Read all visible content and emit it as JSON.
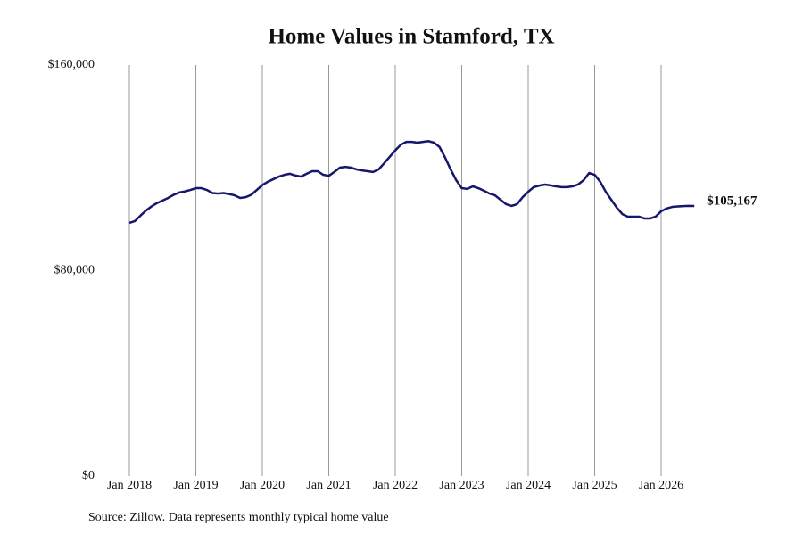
{
  "chart_data": {
    "type": "line",
    "title": "Home Values in Stamford, TX",
    "source": "Source: Zillow. Data represents monthly typical home value",
    "x": [
      "2018-01",
      "2018-02",
      "2018-03",
      "2018-04",
      "2018-05",
      "2018-06",
      "2018-07",
      "2018-08",
      "2018-09",
      "2018-10",
      "2018-11",
      "2018-12",
      "2019-01",
      "2019-02",
      "2019-03",
      "2019-04",
      "2019-05",
      "2019-06",
      "2019-07",
      "2019-08",
      "2019-09",
      "2019-10",
      "2019-11",
      "2019-12",
      "2020-01",
      "2020-02",
      "2020-03",
      "2020-04",
      "2020-05",
      "2020-06",
      "2020-07",
      "2020-08",
      "2020-09",
      "2020-10",
      "2020-11",
      "2020-12",
      "2021-01",
      "2021-02",
      "2021-03",
      "2021-04",
      "2021-05",
      "2021-06",
      "2021-07",
      "2021-08",
      "2021-09",
      "2021-10",
      "2021-11",
      "2021-12",
      "2022-01",
      "2022-02",
      "2022-03",
      "2022-04",
      "2022-05",
      "2022-06",
      "2022-07",
      "2022-08",
      "2022-09",
      "2022-10",
      "2022-11",
      "2022-12",
      "2023-01",
      "2023-02",
      "2023-03",
      "2023-04",
      "2023-05",
      "2023-06",
      "2023-07",
      "2023-08",
      "2023-09",
      "2023-10",
      "2023-11",
      "2023-12",
      "2024-01",
      "2024-02",
      "2024-03",
      "2024-04",
      "2024-05",
      "2024-06",
      "2024-07",
      "2024-08",
      "2024-09",
      "2024-10",
      "2024-11",
      "2024-12",
      "2025-01",
      "2025-02",
      "2025-03",
      "2025-04",
      "2025-05",
      "2025-06",
      "2025-07",
      "2025-08",
      "2025-09",
      "2025-10",
      "2025-11",
      "2025-12",
      "2026-01",
      "2026-02",
      "2026-03",
      "2026-04",
      "2026-05",
      "2026-06",
      "2026-07"
    ],
    "series": [
      {
        "name": "Home value",
        "color": "#16166b",
        "values": [
          98600,
          99300,
          101400,
          103400,
          105000,
          106300,
          107300,
          108300,
          109500,
          110400,
          110800,
          111400,
          112100,
          112100,
          111400,
          110200,
          110000,
          110200,
          109800,
          109300,
          108300,
          108600,
          109500,
          111400,
          113300,
          114600,
          115600,
          116600,
          117300,
          117700,
          117000,
          116600,
          117700,
          118700,
          118700,
          117300,
          116900,
          118400,
          120100,
          120400,
          120100,
          119400,
          119000,
          118700,
          118400,
          119400,
          121800,
          124300,
          126800,
          129000,
          130100,
          130100,
          129800,
          130100,
          130400,
          129800,
          128100,
          124000,
          119400,
          115200,
          112100,
          111800,
          112800,
          112100,
          111100,
          110000,
          109300,
          107600,
          105900,
          105200,
          105900,
          108600,
          110700,
          112500,
          113100,
          113500,
          113200,
          112800,
          112500,
          112500,
          112800,
          113500,
          115200,
          118000,
          117300,
          114600,
          110700,
          107600,
          104500,
          102000,
          101000,
          101000,
          101000,
          100300,
          100300,
          101000,
          103100,
          104200,
          104800,
          105000,
          105100,
          105200,
          105167
        ],
        "value_labels": [
          null,
          null,
          null,
          null,
          null,
          null,
          null,
          null,
          null,
          null,
          null,
          null,
          null,
          null,
          null,
          null,
          null,
          null,
          null,
          null,
          null,
          null,
          null,
          null,
          null,
          null,
          null,
          null,
          null,
          null,
          null,
          null,
          null,
          null,
          null,
          null,
          null,
          null,
          null,
          null,
          null,
          null,
          null,
          null,
          null,
          null,
          null,
          null,
          null,
          null,
          null,
          null,
          null,
          null,
          null,
          null,
          null,
          null,
          null,
          null,
          null,
          null,
          null,
          null,
          null,
          null,
          null,
          null,
          null,
          null,
          null,
          null,
          null,
          null,
          null,
          null,
          null,
          null,
          null,
          null,
          null,
          null,
          null,
          null,
          null,
          null,
          null,
          null,
          null,
          null,
          null,
          null,
          null,
          null,
          null,
          null,
          null,
          null,
          null,
          null,
          null,
          null,
          "$105,167"
        ]
      }
    ],
    "xticks": [
      {
        "value": "2018-01",
        "label": "Jan 2018"
      },
      {
        "value": "2019-01",
        "label": "Jan 2019"
      },
      {
        "value": "2020-01",
        "label": "Jan 2020"
      },
      {
        "value": "2021-01",
        "label": "Jan 2021"
      },
      {
        "value": "2022-01",
        "label": "Jan 2022"
      },
      {
        "value": "2023-01",
        "label": "Jan 2023"
      },
      {
        "value": "2024-01",
        "label": "Jan 2024"
      },
      {
        "value": "2025-01",
        "label": "Jan 2025"
      },
      {
        "value": "2026-01",
        "label": "Jan 2026"
      }
    ],
    "ylim": [
      0,
      160000
    ],
    "yticks": [
      {
        "value": 0,
        "label": "$0"
      },
      {
        "value": 80000,
        "label": "$80,000"
      },
      {
        "value": 160000,
        "label": "$160,000"
      }
    ],
    "grid": "x"
  }
}
